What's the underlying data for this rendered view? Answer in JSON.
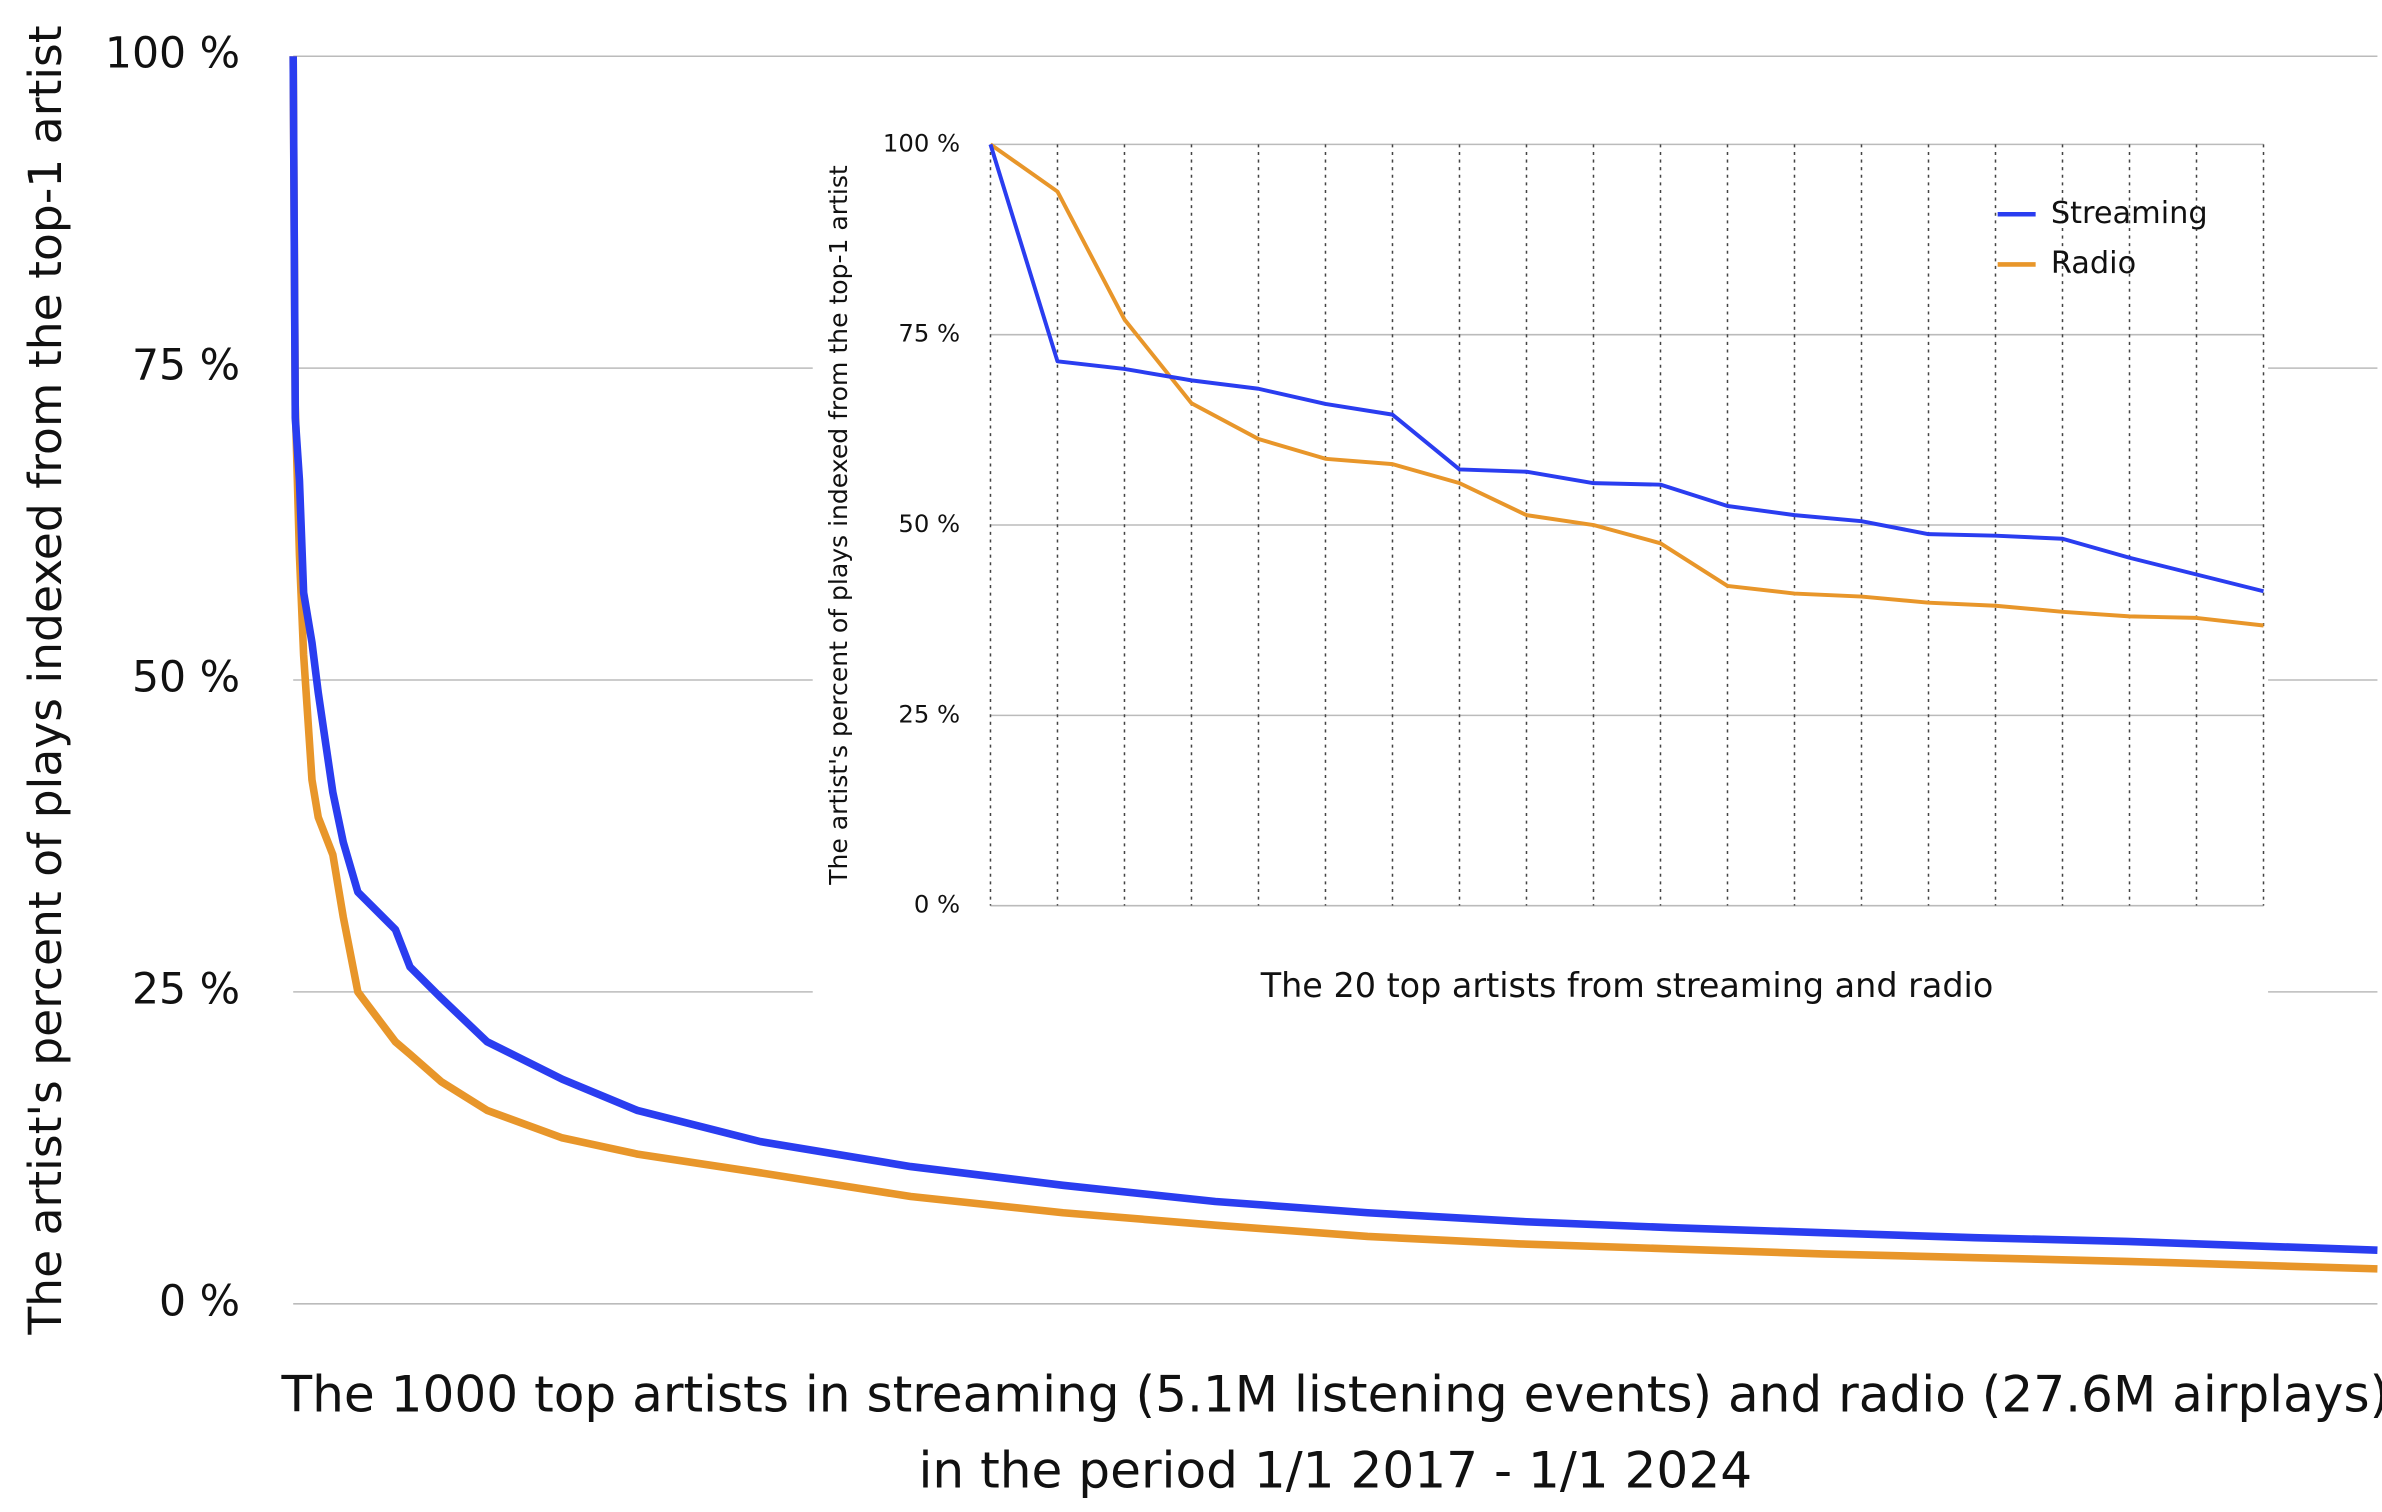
{
  "chart_data": [
    {
      "type": "line",
      "y_label": "The artist's percent of plays indexed from the top-1 artist",
      "x_label": [
        "The 1000 top artists in streaming (5.1M listening events) and radio (27.6M airplays)",
        "in the period 1/1 2017 - 1/1 2024"
      ],
      "x": [
        1,
        2,
        4,
        6,
        10,
        13,
        20,
        25,
        32,
        50,
        57,
        72,
        94,
        130,
        166,
        225,
        297,
        370,
        443,
        516,
        589,
        662,
        734,
        807,
        880,
        1000
      ],
      "series": [
        {
          "name": "Streaming",
          "color": "#2a3df0",
          "values": [
            100,
            71,
            66,
            57,
            53,
            49,
            41,
            37,
            33,
            30,
            27,
            24.5,
            21,
            18,
            15.5,
            13,
            11,
            9.5,
            8.2,
            7.3,
            6.6,
            6.1,
            5.7,
            5.3,
            5.0,
            4.3
          ]
        },
        {
          "name": "Radio",
          "color": "#e8962a",
          "values": [
            100,
            72,
            60,
            52,
            42,
            39,
            36,
            31,
            25,
            21,
            20,
            17.8,
            15.5,
            13.3,
            12,
            10.5,
            8.6,
            7.3,
            6.3,
            5.4,
            4.8,
            4.4,
            4.0,
            3.7,
            3.4,
            2.8
          ]
        }
      ],
      "xlim": [
        1,
        1000
      ],
      "ylim": [
        0,
        100
      ],
      "yticks": [
        {
          "value": 0,
          "label": "0 %"
        },
        {
          "value": 25,
          "label": "25 %"
        },
        {
          "value": 50,
          "label": "50 %"
        },
        {
          "value": 75,
          "label": "75 %"
        },
        {
          "value": 100,
          "label": "100 %"
        }
      ],
      "grid": true
    },
    {
      "type": "line",
      "y_label": "The artist's percent of plays indexed from the top-1 artist",
      "x_label": "The 20 top artists from streaming and radio",
      "categories": [
        null,
        null,
        null,
        null,
        null,
        null,
        null,
        null,
        null,
        null,
        null,
        null,
        null,
        null,
        null,
        null,
        null,
        null,
        null,
        null
      ],
      "series": [
        {
          "name": "Streaming",
          "color": "#2a3df0",
          "values": [
            100,
            71.5,
            70.5,
            69,
            67.9,
            65.9,
            64.5,
            57.3,
            57,
            55.5,
            55.3,
            52.5,
            51.3,
            50.5,
            48.8,
            48.6,
            48.2,
            45.7,
            43.5,
            41.3
          ]
        },
        {
          "name": "Radio",
          "color": "#e8962a",
          "values": [
            100,
            93.8,
            77,
            66,
            61.3,
            58.7,
            58,
            55.5,
            51.3,
            50,
            47.6,
            42,
            41,
            40.6,
            39.8,
            39.4,
            38.6,
            38,
            37.8,
            36.8
          ]
        }
      ],
      "ylim": [
        0,
        100
      ],
      "yticks": [
        {
          "value": 0,
          "label": "0 %"
        },
        {
          "value": 25,
          "label": "25 %"
        },
        {
          "value": 50,
          "label": "50 %"
        },
        {
          "value": 75,
          "label": "75 %"
        },
        {
          "value": 100,
          "label": "100 %"
        }
      ],
      "grid": true,
      "legend": "upper right"
    }
  ]
}
